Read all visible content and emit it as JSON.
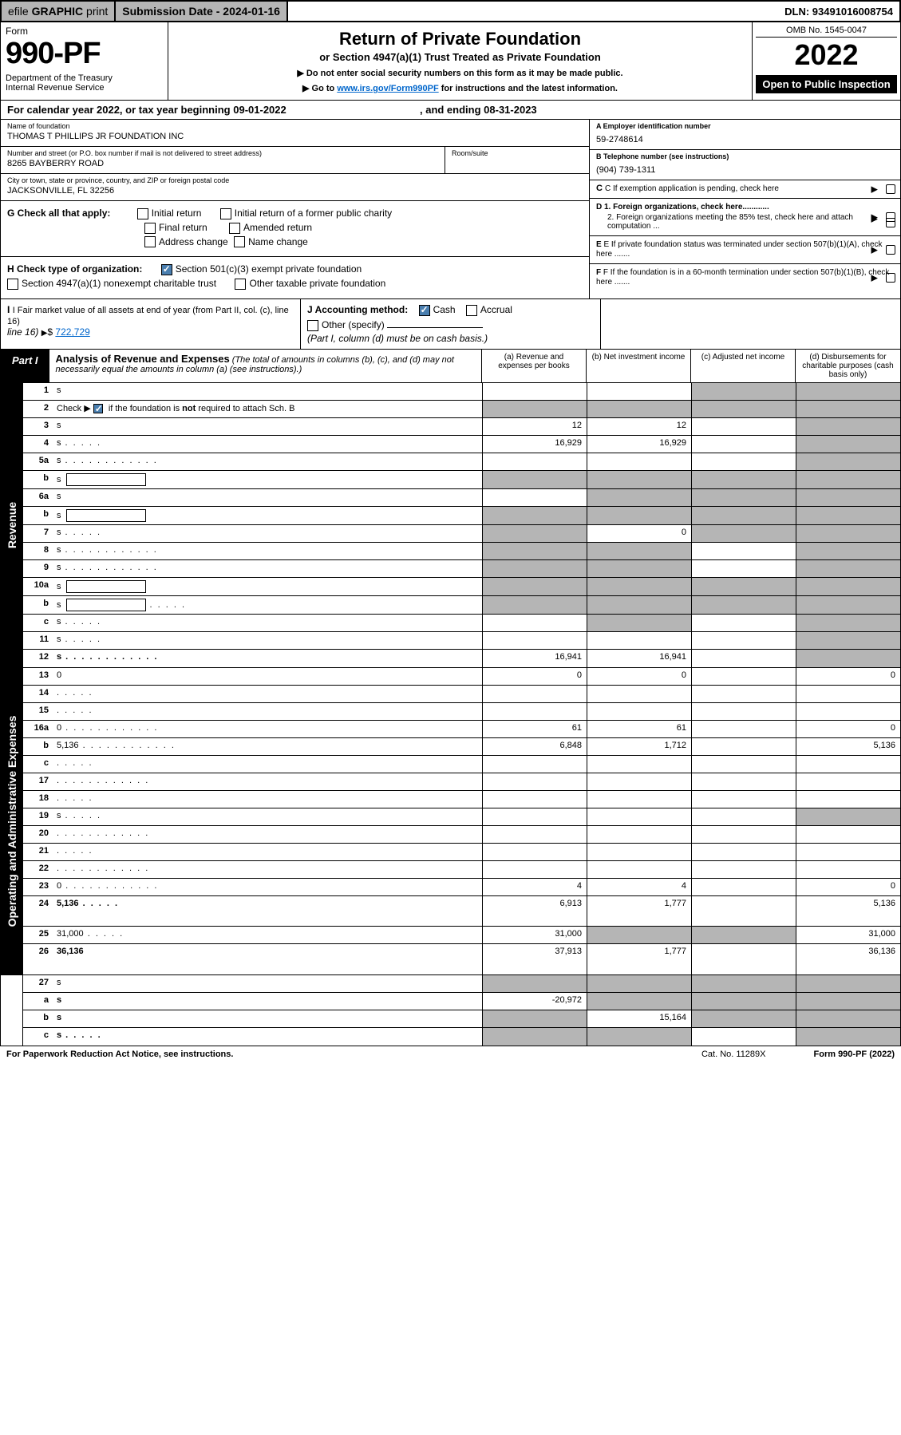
{
  "topbar": {
    "efile_1": "efile ",
    "efile_2": "GRAPHIC ",
    "efile_3": "print",
    "submission": "Submission Date - 2024-01-16",
    "dln": "DLN: 93491016008754"
  },
  "header": {
    "form_label": "Form",
    "form_number": "990-PF",
    "dept": "Department of the Treasury\nInternal Revenue Service",
    "title": "Return of Private Foundation",
    "subtitle": "or Section 4947(a)(1) Trust Treated as Private Foundation",
    "note1": "▶ Do not enter social security numbers on this form as it may be made public.",
    "note2_pre": "▶ Go to ",
    "note2_link": "www.irs.gov/Form990PF",
    "note2_post": " for instructions and the latest information.",
    "omb": "OMB No. 1545-0047",
    "year": "2022",
    "open_public": "Open to Public Inspection"
  },
  "cal_year": {
    "pre": "For calendar year 2022, or tax year beginning ",
    "begin": "09-01-2022",
    "mid": ", and ending ",
    "end": "08-31-2023"
  },
  "info": {
    "name_lbl": "Name of foundation",
    "name_val": "THOMAS T PHILLIPS JR FOUNDATION INC",
    "addr_lbl": "Number and street (or P.O. box number if mail is not delivered to street address)",
    "addr_val": "8265 BAYBERRY ROAD",
    "room_lbl": "Room/suite",
    "city_lbl": "City or town, state or province, country, and ZIP or foreign postal code",
    "city_val": "JACKSONVILLE, FL  32256",
    "ein_lbl": "A Employer identification number",
    "ein_val": "59-2748614",
    "phone_lbl": "B Telephone number (see instructions)",
    "phone_val": "(904) 739-1311",
    "c_lbl": "C If exemption application is pending, check here",
    "d1": "D 1. Foreign organizations, check here............",
    "d2": "2. Foreign organizations meeting the 85% test, check here and attach computation ...",
    "e_lbl": "E  If private foundation status was terminated under section 507(b)(1)(A), check here .......",
    "f_lbl": "F  If the foundation is in a 60-month termination under section 507(b)(1)(B), check here .......",
    "g_lbl": "G Check all that apply:",
    "g_opts": [
      "Initial return",
      "Initial return of a former public charity",
      "Final return",
      "Amended return",
      "Address change",
      "Name change"
    ],
    "h_lbl": "H Check type of organization:",
    "h_opt1": "Section 501(c)(3) exempt private foundation",
    "h_opt2": "Section 4947(a)(1) nonexempt charitable trust",
    "h_opt3": "Other taxable private foundation",
    "i_lbl": "I Fair market value of all assets at end of year (from Part II, col. (c), line 16)",
    "i_val": "722,729",
    "j_lbl": "J Accounting method:",
    "j_cash": "Cash",
    "j_accrual": "Accrual",
    "j_other": "Other (specify)",
    "j_note": "(Part I, column (d) must be on cash basis.)"
  },
  "part1": {
    "tab": "Part I",
    "title": "Analysis of Revenue and Expenses",
    "note": " (The total of amounts in columns (b), (c), and (d) may not necessarily equal the amounts in column (a) (see instructions).)",
    "cols": {
      "a": "(a)   Revenue and expenses per books",
      "b": "(b)   Net investment income",
      "c": "(c)   Adjusted net income",
      "d": "(d)  Disbursements for charitable purposes (cash basis only)"
    }
  },
  "sides": {
    "rev": "Revenue",
    "exp": "Operating and Administrative Expenses"
  },
  "rows": [
    {
      "n": "1",
      "d": "s",
      "a": "",
      "b": "",
      "c": "s"
    },
    {
      "n": "2",
      "d": "s",
      "dots": true,
      "a": "s",
      "b": "s",
      "c": "s",
      "nob": true
    },
    {
      "n": "3",
      "d": "s",
      "a": "12",
      "b": "12",
      "c": ""
    },
    {
      "n": "4",
      "d": "s",
      "dots": "s",
      "a": "16,929",
      "b": "16,929",
      "c": ""
    },
    {
      "n": "5a",
      "d": "s",
      "dots": true,
      "a": "",
      "b": "",
      "c": ""
    },
    {
      "n": "b",
      "d": "s",
      "box": true,
      "a": "s",
      "b": "s",
      "c": "s"
    },
    {
      "n": "6a",
      "d": "s",
      "a": "",
      "b": "s",
      "c": "s"
    },
    {
      "n": "b",
      "d": "s",
      "box": true,
      "a": "s",
      "b": "s",
      "c": "s",
      "nob": true
    },
    {
      "n": "7",
      "d": "s",
      "dots": "s",
      "a": "s",
      "b": "0",
      "c": "s"
    },
    {
      "n": "8",
      "d": "s",
      "dots": true,
      "a": "s",
      "b": "s",
      "c": ""
    },
    {
      "n": "9",
      "d": "s",
      "dots": true,
      "a": "s",
      "b": "s",
      "c": ""
    },
    {
      "n": "10a",
      "d": "s",
      "box": true,
      "a": "s",
      "b": "s",
      "c": "s",
      "nob": true
    },
    {
      "n": "b",
      "d": "s",
      "dots": "s",
      "box": true,
      "a": "s",
      "b": "s",
      "c": "s"
    },
    {
      "n": "c",
      "d": "s",
      "dots": "s",
      "a": "",
      "b": "s",
      "c": ""
    },
    {
      "n": "11",
      "d": "s",
      "dots": "s",
      "a": "",
      "b": "",
      "c": ""
    },
    {
      "n": "12",
      "d": "s",
      "dots": true,
      "bold": true,
      "a": "16,941",
      "b": "16,941",
      "c": ""
    }
  ],
  "exp_rows": [
    {
      "n": "13",
      "d": "0",
      "a": "0",
      "b": "0",
      "c": ""
    },
    {
      "n": "14",
      "d": "",
      "dots": "s",
      "a": "",
      "b": "",
      "c": ""
    },
    {
      "n": "15",
      "d": "",
      "dots": "s",
      "a": "",
      "b": "",
      "c": ""
    },
    {
      "n": "16a",
      "d": "0",
      "dots": true,
      "a": "61",
      "b": "61",
      "c": ""
    },
    {
      "n": "b",
      "d": "5,136",
      "dots": true,
      "a": "6,848",
      "b": "1,712",
      "c": ""
    },
    {
      "n": "c",
      "d": "",
      "dots": "s",
      "a": "",
      "b": "",
      "c": ""
    },
    {
      "n": "17",
      "d": "",
      "dots": true,
      "a": "",
      "b": "",
      "c": ""
    },
    {
      "n": "18",
      "d": "",
      "dots": "s",
      "a": "",
      "b": "",
      "c": ""
    },
    {
      "n": "19",
      "d": "s",
      "dots": "s",
      "a": "",
      "b": "",
      "c": ""
    },
    {
      "n": "20",
      "d": "",
      "dots": true,
      "a": "",
      "b": "",
      "c": ""
    },
    {
      "n": "21",
      "d": "",
      "dots": "s",
      "a": "",
      "b": "",
      "c": ""
    },
    {
      "n": "22",
      "d": "",
      "dots": true,
      "a": "",
      "b": "",
      "c": ""
    },
    {
      "n": "23",
      "d": "0",
      "dots": true,
      "a": "4",
      "b": "4",
      "c": ""
    },
    {
      "n": "24",
      "d": "5,136",
      "dots": "s",
      "bold": true,
      "a": "6,913",
      "b": "1,777",
      "c": "",
      "tall": true
    },
    {
      "n": "25",
      "d": "31,000",
      "dots": "s",
      "a": "31,000",
      "b": "s",
      "c": "s"
    },
    {
      "n": "26",
      "d": "36,136",
      "bold": true,
      "a": "37,913",
      "b": "1,777",
      "c": "",
      "tall": true
    }
  ],
  "bottom_rows": [
    {
      "n": "27",
      "d": "s",
      "a": "s",
      "b": "s",
      "c": "s"
    },
    {
      "n": "a",
      "d": "s",
      "bold": true,
      "a": "-20,972",
      "b": "s",
      "c": "s"
    },
    {
      "n": "b",
      "d": "s",
      "bold": true,
      "a": "s",
      "b": "15,164",
      "c": "s"
    },
    {
      "n": "c",
      "d": "s",
      "bold": true,
      "dots": "s",
      "a": "s",
      "b": "s",
      "c": ""
    }
  ],
  "footer": {
    "left": "For Paperwork Reduction Act Notice, see instructions.",
    "cat": "Cat. No. 11289X",
    "right": "Form 990-PF (2022)"
  },
  "colors": {
    "shade": "#b5b5b5",
    "link": "#0066cc",
    "chk": "#4a7fb0"
  }
}
